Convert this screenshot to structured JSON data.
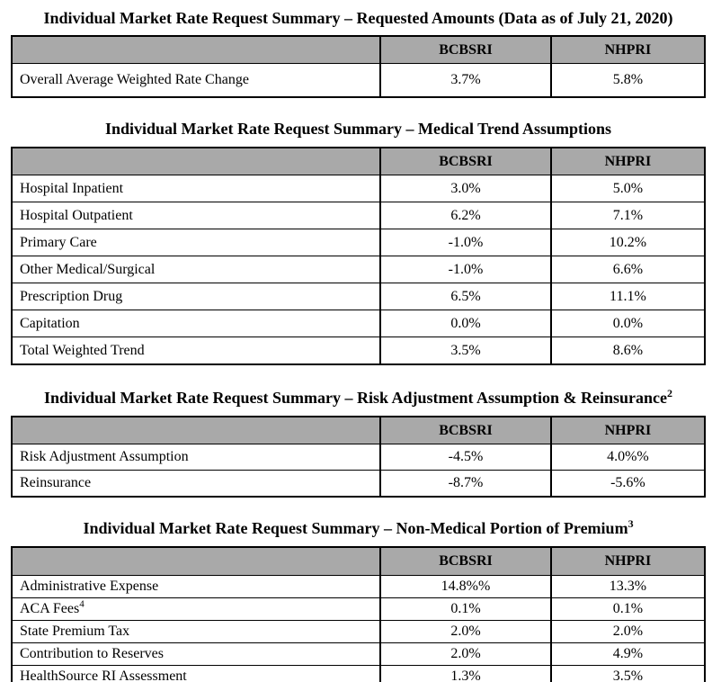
{
  "colors": {
    "header_bg": "#a9a9a9",
    "border": "#000000",
    "text": "#000000"
  },
  "columns": {
    "company1": "BCBSRI",
    "company2": "NHPRI"
  },
  "sections": [
    {
      "title": "Individual Market Rate Request Summary – Requested Amounts (Data as of July 21, 2020)",
      "rows": [
        {
          "label": "Overall Average Weighted Rate Change",
          "v1": "3.7%",
          "v2": "5.8%"
        }
      ]
    },
    {
      "title": "Individual Market Rate Request Summary – Medical Trend Assumptions",
      "rows": [
        {
          "label": "Hospital Inpatient",
          "v1": "3.0%",
          "v2": "5.0%"
        },
        {
          "label": "Hospital Outpatient",
          "v1": "6.2%",
          "v2": "7.1%"
        },
        {
          "label": "Primary Care",
          "v1": "-1.0%",
          "v2": "10.2%"
        },
        {
          "label": "Other Medical/Surgical",
          "v1": "-1.0%",
          "v2": "6.6%"
        },
        {
          "label": "Prescription Drug",
          "v1": "6.5%",
          "v2": "11.1%"
        },
        {
          "label": "Capitation",
          "v1": "0.0%",
          "v2": "0.0%"
        },
        {
          "label": "Total Weighted Trend",
          "v1": "3.5%",
          "v2": "8.6%"
        }
      ]
    },
    {
      "title": "Individual Market Rate Request Summary – Risk Adjustment Assumption & Reinsurance",
      "title_sup": "2",
      "rows": [
        {
          "label": "Risk Adjustment Assumption",
          "v1": "-4.5%",
          "v2": "4.0%%"
        },
        {
          "label": "Reinsurance",
          "v1": "-8.7%",
          "v2": "-5.6%"
        }
      ]
    },
    {
      "title": "Individual Market Rate Request Summary – Non-Medical Portion of Premium",
      "title_sup": "3",
      "rows": [
        {
          "label": "Administrative Expense",
          "v1": "14.8%%",
          "v2": "13.3%"
        },
        {
          "label": "ACA Fees",
          "label_sup": "4",
          "v1": "0.1%",
          "v2": "0.1%"
        },
        {
          "label": "State Premium Tax",
          "v1": "2.0%",
          "v2": "2.0%"
        },
        {
          "label": "Contribution to Reserves",
          "v1": "2.0%",
          "v2": "4.9%"
        },
        {
          "label": "HealthSource RI Assessment",
          "v1": "1.3%",
          "v2": "3.5%"
        }
      ]
    }
  ]
}
